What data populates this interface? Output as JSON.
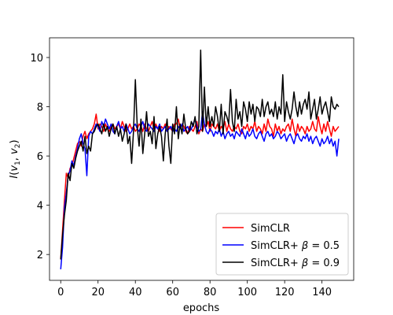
{
  "chart_data": {
    "type": "line",
    "xlabel": "epochs",
    "ylabel_parts": {
      "main": "I",
      "open": "(",
      "v1": "v",
      "sub1": "1",
      "comma": ", ",
      "v2": "v",
      "sub2": "2",
      "close": ")"
    },
    "xlim": [
      -6,
      157
    ],
    "ylim": [
      0.95,
      10.8
    ],
    "xticks": [
      0,
      20,
      40,
      60,
      80,
      100,
      120,
      140
    ],
    "yticks": [
      2,
      4,
      6,
      8,
      10
    ],
    "grid": false,
    "legend_position": "lower-right",
    "series": [
      {
        "name_parts": {
          "base": "SimCLR",
          "beta": "",
          "eq": "",
          "val": ""
        },
        "color": "#ff0000",
        "x": [
          0,
          1,
          2,
          3,
          4,
          5,
          6,
          7,
          8,
          9,
          10,
          11,
          12,
          13,
          14,
          15,
          16,
          17,
          18,
          19,
          20,
          21,
          22,
          23,
          24,
          25,
          26,
          27,
          28,
          29,
          30,
          31,
          32,
          33,
          34,
          35,
          36,
          37,
          38,
          39,
          40,
          41,
          42,
          43,
          44,
          45,
          46,
          47,
          48,
          49,
          50,
          51,
          52,
          53,
          54,
          55,
          56,
          57,
          58,
          59,
          60,
          61,
          62,
          63,
          64,
          65,
          66,
          67,
          68,
          69,
          70,
          71,
          72,
          73,
          74,
          75,
          76,
          77,
          78,
          79,
          80,
          81,
          82,
          83,
          84,
          85,
          86,
          87,
          88,
          89,
          90,
          91,
          92,
          93,
          94,
          95,
          96,
          97,
          98,
          99,
          100,
          101,
          102,
          103,
          104,
          105,
          106,
          107,
          108,
          109,
          110,
          111,
          112,
          113,
          114,
          115,
          116,
          117,
          118,
          119,
          120,
          121,
          122,
          123,
          124,
          125,
          126,
          127,
          128,
          129,
          130,
          131,
          132,
          133,
          134,
          135,
          136,
          137,
          138,
          139,
          140,
          141,
          142,
          143,
          144,
          145,
          146,
          147,
          148,
          149
        ],
        "values": [
          1.8,
          3.0,
          4.2,
          5.3,
          5.1,
          5.5,
          5.6,
          5.9,
          6.2,
          6.5,
          6.6,
          6.4,
          6.8,
          7.0,
          6.7,
          6.9,
          7.0,
          7.1,
          7.3,
          7.7,
          7.1,
          7.3,
          7.2,
          7.0,
          7.3,
          7.1,
          7.0,
          7.2,
          7.3,
          7.1,
          7.2,
          7.3,
          7.1,
          7.4,
          7.2,
          7.0,
          7.1,
          7.3,
          7.1,
          7.2,
          7.0,
          7.1,
          7.3,
          7.2,
          7.0,
          7.3,
          7.1,
          7.0,
          7.2,
          7.4,
          7.1,
          7.3,
          7.1,
          7.0,
          7.2,
          7.1,
          7.3,
          7.0,
          7.2,
          7.1,
          7.0,
          7.3,
          7.3,
          7.5,
          7.1,
          7.3,
          7.2,
          7.0,
          6.9,
          7.2,
          7.1,
          7.0,
          7.2,
          7.4,
          6.9,
          7.1,
          7.0,
          7.3,
          7.2,
          7.4,
          7.0,
          7.3,
          7.2,
          7.1,
          7.3,
          7.0,
          7.2,
          7.1,
          7.4,
          7.0,
          7.3,
          7.1,
          7.0,
          7.2,
          7.1,
          7.3,
          7.0,
          6.9,
          7.2,
          7.1,
          7.3,
          7.0,
          7.2,
          7.1,
          7.4,
          7.0,
          7.2,
          7.1,
          6.9,
          7.3,
          7.0,
          7.5,
          7.2,
          7.1,
          6.8,
          7.3,
          7.0,
          7.2,
          6.9,
          7.1,
          7.0,
          7.2,
          7.3,
          7.0,
          7.5,
          7.1,
          6.8,
          7.3,
          7.0,
          7.2,
          7.1,
          6.9,
          7.2,
          7.0,
          7.1,
          7.4,
          7.1,
          7.0,
          7.6,
          7.2,
          6.9,
          7.3,
          7.0,
          7.4,
          7.1,
          6.8,
          7.2,
          7.0,
          7.1,
          7.2
        ]
      },
      {
        "name_parts": {
          "base": "SimCLR+ ",
          "beta": "β",
          "eq": " = ",
          "val": "0.5"
        },
        "color": "#0000ff",
        "x": [
          0,
          1,
          2,
          3,
          4,
          5,
          6,
          7,
          8,
          9,
          10,
          11,
          12,
          13,
          14,
          15,
          16,
          17,
          18,
          19,
          20,
          21,
          22,
          23,
          24,
          25,
          26,
          27,
          28,
          29,
          30,
          31,
          32,
          33,
          34,
          35,
          36,
          37,
          38,
          39,
          40,
          41,
          42,
          43,
          44,
          45,
          46,
          47,
          48,
          49,
          50,
          51,
          52,
          53,
          54,
          55,
          56,
          57,
          58,
          59,
          60,
          61,
          62,
          63,
          64,
          65,
          66,
          67,
          68,
          69,
          70,
          71,
          72,
          73,
          74,
          75,
          76,
          77,
          78,
          79,
          80,
          81,
          82,
          83,
          84,
          85,
          86,
          87,
          88,
          89,
          90,
          91,
          92,
          93,
          94,
          95,
          96,
          97,
          98,
          99,
          100,
          101,
          102,
          103,
          104,
          105,
          106,
          107,
          108,
          109,
          110,
          111,
          112,
          113,
          114,
          115,
          116,
          117,
          118,
          119,
          120,
          121,
          122,
          123,
          124,
          125,
          126,
          127,
          128,
          129,
          130,
          131,
          132,
          133,
          134,
          135,
          136,
          137,
          138,
          139,
          140,
          141,
          142,
          143,
          144,
          145,
          146,
          147,
          148,
          149
        ],
        "values": [
          1.4,
          2.3,
          3.9,
          4.5,
          5.2,
          5.4,
          5.8,
          5.6,
          6.0,
          6.3,
          6.7,
          6.9,
          6.5,
          6.3,
          5.2,
          6.8,
          7.0,
          6.9,
          7.1,
          7.3,
          7.2,
          7.0,
          7.4,
          7.2,
          7.5,
          7.3,
          7.1,
          7.3,
          7.0,
          6.9,
          7.2,
          7.4,
          7.1,
          7.2,
          7.0,
          7.3,
          7.1,
          6.9,
          7.0,
          7.2,
          7.3,
          7.1,
          7.0,
          7.2,
          7.4,
          7.1,
          7.0,
          7.3,
          7.2,
          7.1,
          7.0,
          7.2,
          7.1,
          7.3,
          7.0,
          7.1,
          7.2,
          7.0,
          7.1,
          7.2,
          7.0,
          7.1,
          7.0,
          7.2,
          7.1,
          7.3,
          7.0,
          7.1,
          7.2,
          7.0,
          7.1,
          7.3,
          7.5,
          7.2,
          7.0,
          7.1,
          7.8,
          7.3,
          7.0,
          6.9,
          7.1,
          7.0,
          6.8,
          7.0,
          6.9,
          7.1,
          6.8,
          7.0,
          6.7,
          6.9,
          7.0,
          6.8,
          6.9,
          6.7,
          7.0,
          6.9,
          6.8,
          7.1,
          6.9,
          6.7,
          7.0,
          6.8,
          6.9,
          7.1,
          6.8,
          6.7,
          6.9,
          7.0,
          6.8,
          6.6,
          6.9,
          7.0,
          6.8,
          6.9,
          6.7,
          6.8,
          7.0,
          6.9,
          6.7,
          6.8,
          6.9,
          6.6,
          6.8,
          6.9,
          6.7,
          6.5,
          6.8,
          6.9,
          6.7,
          6.6,
          6.8,
          6.7,
          6.9,
          6.6,
          6.8,
          6.5,
          6.7,
          6.8,
          6.6,
          6.4,
          6.7,
          6.5,
          6.6,
          6.8,
          6.5,
          6.7,
          6.4,
          6.6,
          6.0,
          6.7
        ]
      },
      {
        "name_parts": {
          "base": "SimCLR+ ",
          "beta": "β",
          "eq": " = ",
          "val": "0.9"
        },
        "color": "#000000",
        "x": [
          0,
          1,
          2,
          3,
          4,
          5,
          6,
          7,
          8,
          9,
          10,
          11,
          12,
          13,
          14,
          15,
          16,
          17,
          18,
          19,
          20,
          21,
          22,
          23,
          24,
          25,
          26,
          27,
          28,
          29,
          30,
          31,
          32,
          33,
          34,
          35,
          36,
          37,
          38,
          39,
          40,
          41,
          42,
          43,
          44,
          45,
          46,
          47,
          48,
          49,
          50,
          51,
          52,
          53,
          54,
          55,
          56,
          57,
          58,
          59,
          60,
          61,
          62,
          63,
          64,
          65,
          66,
          67,
          68,
          69,
          70,
          71,
          72,
          73,
          74,
          75,
          76,
          77,
          78,
          79,
          80,
          81,
          82,
          83,
          84,
          85,
          86,
          87,
          88,
          89,
          90,
          91,
          92,
          93,
          94,
          95,
          96,
          97,
          98,
          99,
          100,
          101,
          102,
          103,
          104,
          105,
          106,
          107,
          108,
          109,
          110,
          111,
          112,
          113,
          114,
          115,
          116,
          117,
          118,
          119,
          120,
          121,
          122,
          123,
          124,
          125,
          126,
          127,
          128,
          129,
          130,
          131,
          132,
          133,
          134,
          135,
          136,
          137,
          138,
          139,
          140,
          141,
          142,
          143,
          144,
          145,
          146,
          147,
          148,
          149
        ],
        "values": [
          1.8,
          2.8,
          3.6,
          4.2,
          5.3,
          5.0,
          5.7,
          5.5,
          5.9,
          6.2,
          6.4,
          6.6,
          6.2,
          6.8,
          6.1,
          6.4,
          6.2,
          6.9,
          7.0,
          7.2,
          7.3,
          7.1,
          6.9,
          7.3,
          7.0,
          7.2,
          6.8,
          7.1,
          7.3,
          6.9,
          7.2,
          6.8,
          7.1,
          6.6,
          6.9,
          7.3,
          6.5,
          6.8,
          5.7,
          7.0,
          9.1,
          7.2,
          6.4,
          7.5,
          6.1,
          6.9,
          7.8,
          6.8,
          7.0,
          6.5,
          7.6,
          6.3,
          6.9,
          7.2,
          6.8,
          5.8,
          6.9,
          7.5,
          6.4,
          5.7,
          7.3,
          6.9,
          8.0,
          6.7,
          7.3,
          6.9,
          7.7,
          7.1,
          6.9,
          7.0,
          7.4,
          7.2,
          7.6,
          6.9,
          7.2,
          10.3,
          7.0,
          8.8,
          7.2,
          8.0,
          7.2,
          7.6,
          7.2,
          8.0,
          7.6,
          7.0,
          8.1,
          6.9,
          7.8,
          7.6,
          7.3,
          8.7,
          7.4,
          7.0,
          8.3,
          7.5,
          7.8,
          7.2,
          8.2,
          7.9,
          7.4,
          8.2,
          7.7,
          8.1,
          7.4,
          8.0,
          7.9,
          7.6,
          8.3,
          7.6,
          8.0,
          8.2,
          7.7,
          7.9,
          7.6,
          8.2,
          7.5,
          8.0,
          7.7,
          9.3,
          7.4,
          8.2,
          7.8,
          7.5,
          7.9,
          8.6,
          8.0,
          7.6,
          8.2,
          7.7,
          8.1,
          8.3,
          7.9,
          8.6,
          7.5,
          7.9,
          8.3,
          7.5,
          7.9,
          8.4,
          7.7,
          8.0,
          8.2,
          7.8,
          7.4,
          8.4,
          8.0,
          7.9,
          8.1,
          8.0
        ]
      }
    ]
  }
}
